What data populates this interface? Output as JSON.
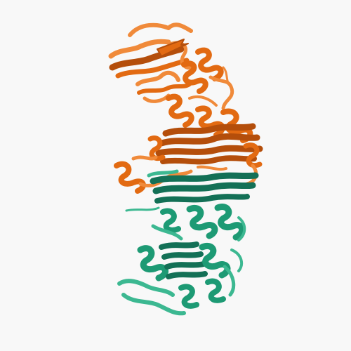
{
  "image": {
    "subject": "protein-ribbon-structure",
    "background_color": "#f8f8f8",
    "chains": [
      {
        "id": "chain-a",
        "color": "#e26a12",
        "shade": "#b44e0b",
        "highlight": "#f08a3a"
      },
      {
        "id": "chain-b",
        "color": "#1d9a74",
        "shade": "#137056",
        "highlight": "#3cb891"
      }
    ]
  }
}
